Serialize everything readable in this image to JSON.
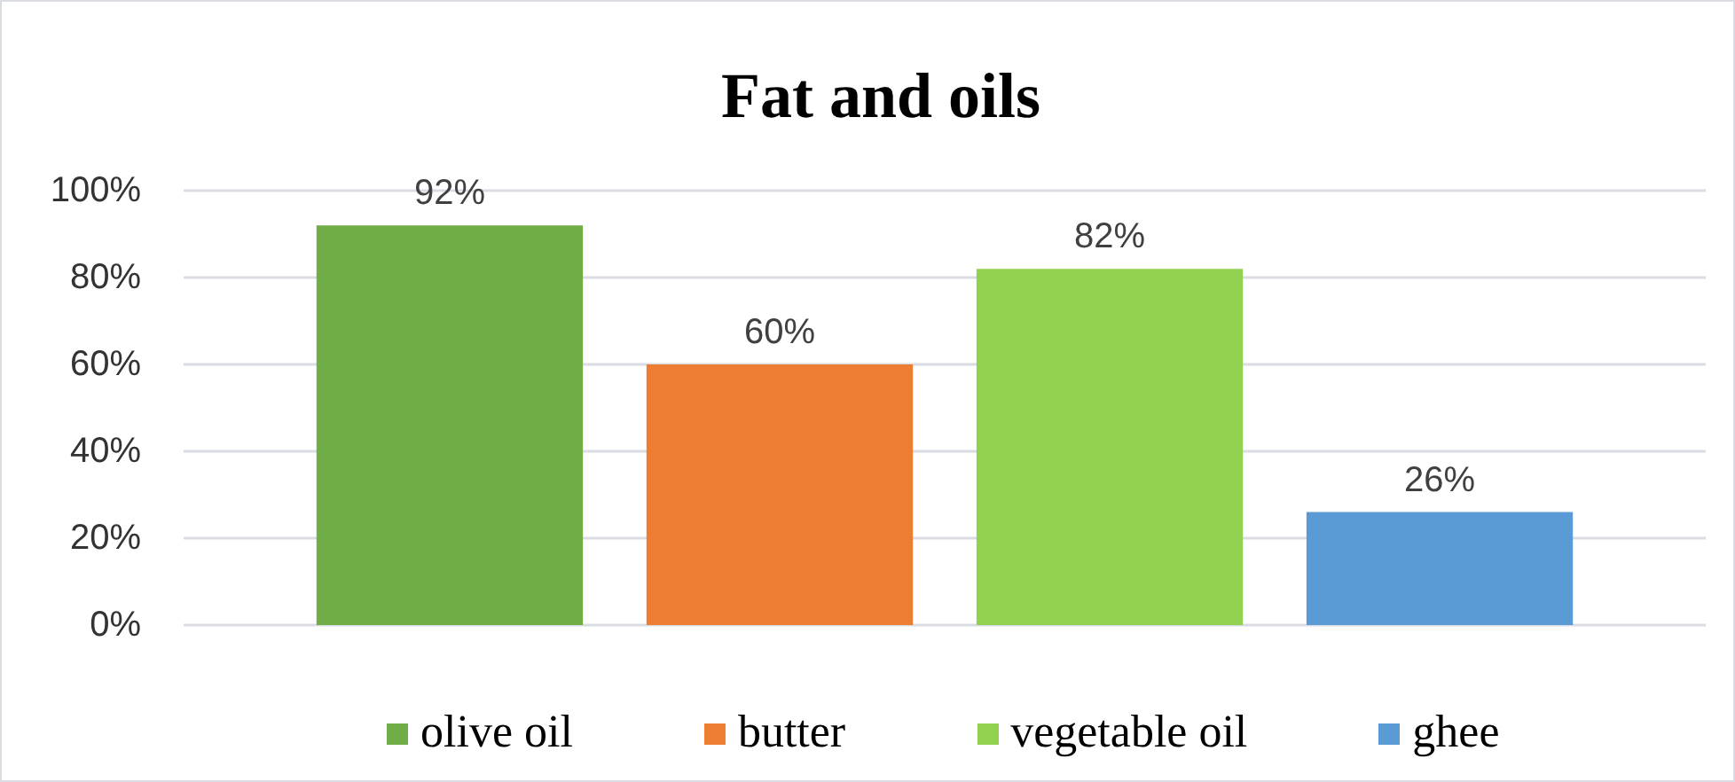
{
  "chart_data": {
    "type": "bar",
    "title": "Fat and oils",
    "categories": [
      null
    ],
    "series": [
      {
        "name": "olive oil",
        "color": "#70ad47",
        "values": [
          92
        ],
        "value_labels": [
          "92%"
        ]
      },
      {
        "name": "butter",
        "color": "#ed7d31",
        "values": [
          60
        ],
        "value_labels": [
          "60%"
        ]
      },
      {
        "name": "vegetable oil",
        "color": "#92d050",
        "values": [
          82
        ],
        "value_labels": [
          "82%"
        ]
      },
      {
        "name": "ghee",
        "color": "#5b9bd5",
        "values": [
          26
        ],
        "value_labels": [
          "26%"
        ]
      }
    ],
    "ylim": [
      0,
      100
    ],
    "yticks": [
      {
        "value": 0,
        "label": "0%"
      },
      {
        "value": 20,
        "label": "20%"
      },
      {
        "value": 40,
        "label": "40%"
      },
      {
        "value": 60,
        "label": "60%"
      },
      {
        "value": 80,
        "label": "80%"
      },
      {
        "value": 100,
        "label": "100%"
      }
    ],
    "grid": "y",
    "legend": "bottom",
    "tick_labels": "y"
  }
}
